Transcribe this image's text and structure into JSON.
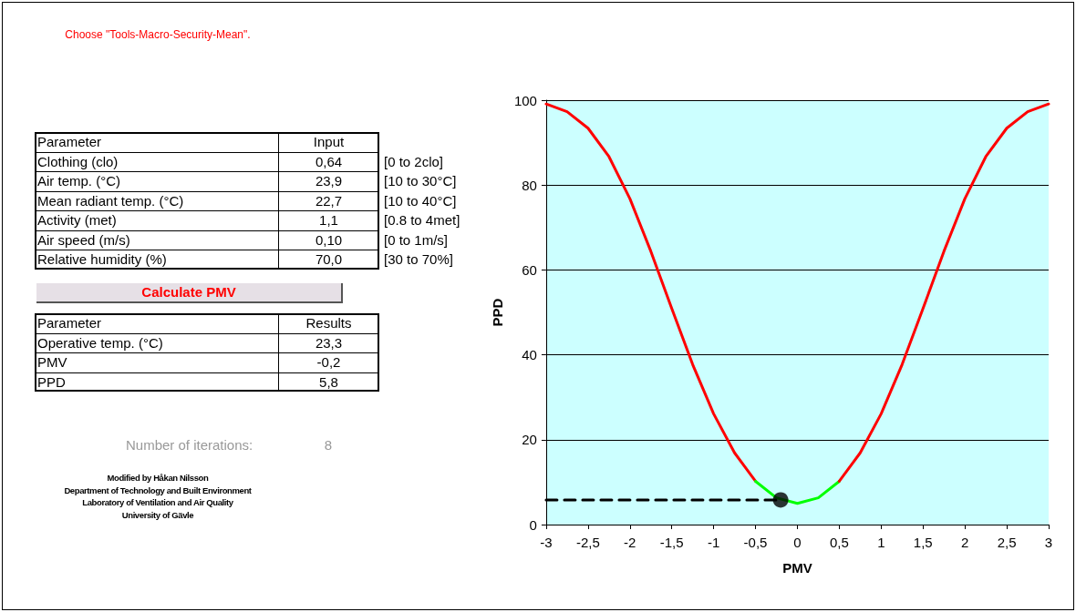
{
  "chart_data": [
    {
      "type": "other",
      "annotations": [
        "Choose \"Tools-Macro-Security-Mean\".",
        "Parameter",
        "Input",
        "Clothing (clo)",
        "0,64",
        "[0 to 2clo]",
        "Air temp. (°C)",
        "23,9",
        "[10 to 30°C]",
        "Mean radiant temp. (°C)",
        "22,7",
        "[10 to 40°C]",
        "Activity (met)",
        "1,1",
        "[0.8 to 4met]",
        "Air speed (m/s)",
        "0,10",
        "[0 to 1m/s]",
        "Relative humidity (%)",
        "70,0",
        "[30 to 70%]",
        "Calculate PMV",
        "Parameter",
        "Results",
        "Operative temp. (°C)",
        "23,3",
        "PMV",
        "-0,2",
        "PPD",
        "5,8",
        "Number of iterations:",
        "8",
        "Modified by Håkan Nilsson",
        "Department of Technology and Built Environment",
        "Laboratory of Ventilation and Air Quality",
        "University of Gävle"
      ]
    },
    {
      "type": "line",
      "xlabel": "PMV",
      "ylabel": "PPD",
      "xlim": [
        -3,
        3
      ],
      "ylim": [
        0,
        100
      ],
      "xticks": [
        -3,
        {
          "value": -2.5,
          "label": "-2,5"
        },
        -2,
        {
          "value": -1.5,
          "label": "-1,5"
        },
        -1,
        {
          "value": -0.5,
          "label": "-0,5"
        },
        0,
        {
          "value": 0.5,
          "label": "0,5"
        },
        1,
        {
          "value": 1.5,
          "label": "1,5"
        },
        2,
        {
          "value": 2.5,
          "label": "2,5"
        },
        3
      ],
      "yticks": [
        0,
        20,
        40,
        60,
        80,
        100
      ],
      "grid": "y",
      "series": [
        {
          "type": "line",
          "color": "#ff0000",
          "x": [
            -3,
            -2.75,
            -2.5,
            -2.25,
            -2,
            -1.75,
            -1.5,
            -1.25,
            -1,
            -0.75,
            -0.5
          ],
          "values": [
            99.1,
            97.3,
            93.4,
            86.7,
            76.8,
            64.4,
            50.9,
            37.7,
            26.1,
            16.9,
            10.2
          ]
        },
        {
          "type": "line",
          "color": "#00ff00",
          "x": [
            -0.5,
            -0.25,
            0,
            0.25,
            0.5
          ],
          "values": [
            10.2,
            6.3,
            5,
            6.3,
            10.2
          ]
        },
        {
          "type": "line",
          "color": "#ff0000",
          "x": [
            0.5,
            0.75,
            1,
            1.25,
            1.5,
            1.75,
            2,
            2.25,
            2.5,
            2.75,
            3
          ],
          "values": [
            10.2,
            16.9,
            26.1,
            37.7,
            50.9,
            64.4,
            76.8,
            86.7,
            93.4,
            97.3,
            99.1
          ]
        },
        {
          "type": "line",
          "color": "#000000",
          "line_style": "dashed",
          "x": [
            -3,
            -0.2
          ],
          "values": [
            5.8,
            5.8
          ]
        },
        {
          "type": "scatter",
          "color": "#000000",
          "marker": "circle",
          "x": [
            -0.2
          ],
          "values": [
            5.8
          ]
        }
      ]
    }
  ]
}
